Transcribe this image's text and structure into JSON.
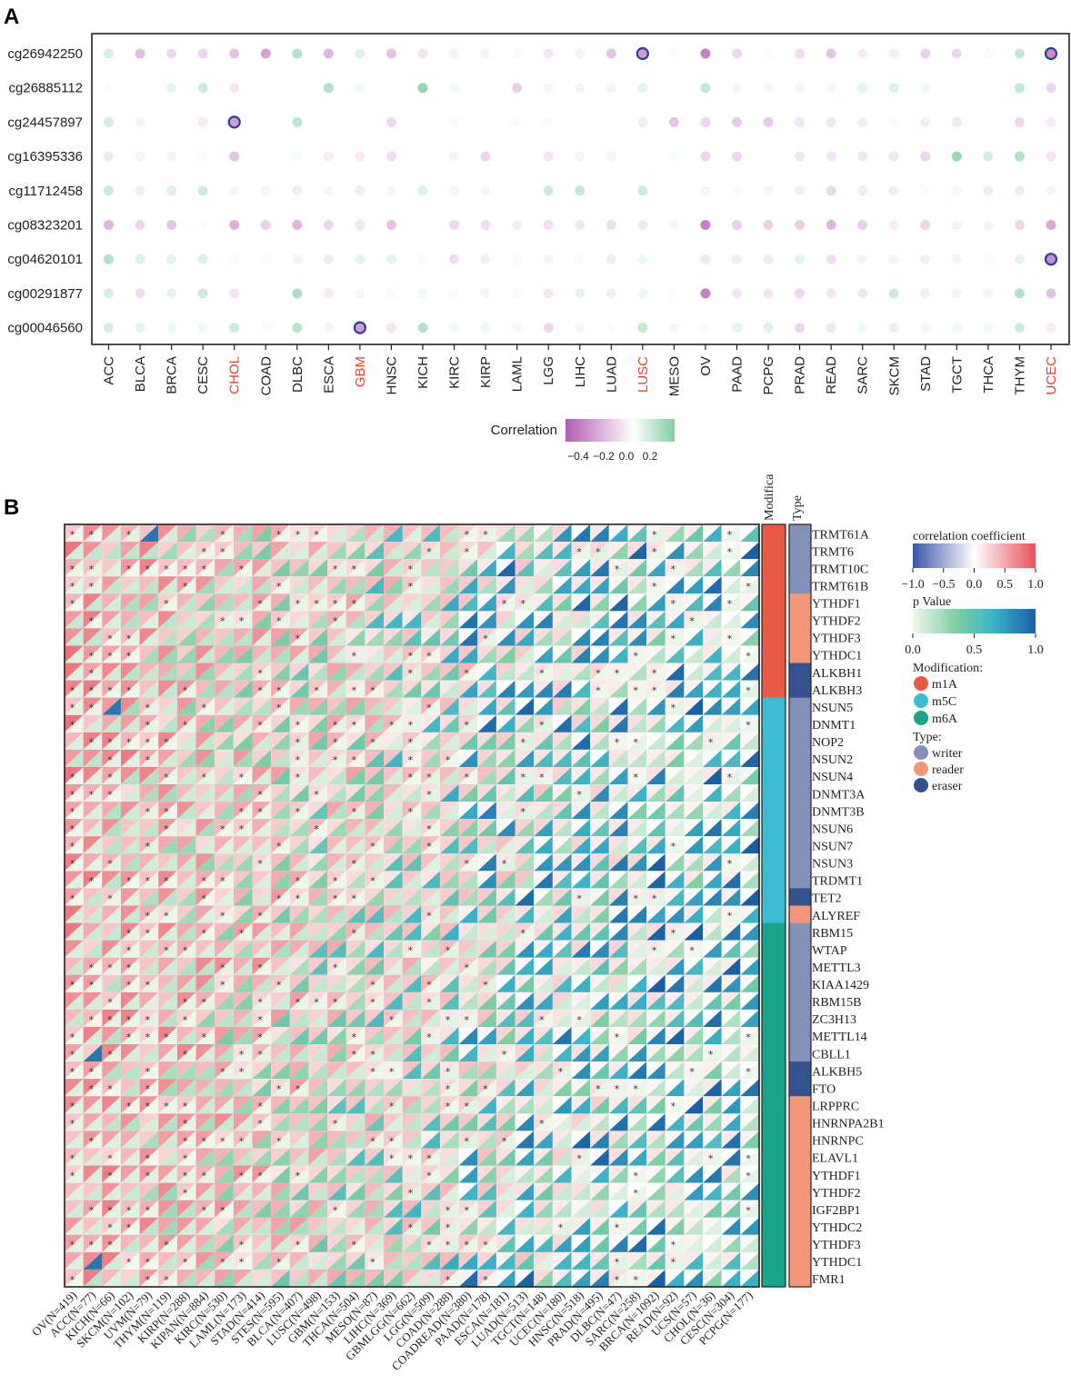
{
  "chart_data": [
    {
      "panel": "A",
      "type": "heatmap",
      "subtype": "dot-plot",
      "panel_label": "A",
      "rows": [
        "cg26942250",
        "cg26885112",
        "cg24457897",
        "cg16395336",
        "cg11712458",
        "cg08323201",
        "cg04620101",
        "cg00291877",
        "cg00046560"
      ],
      "columns": [
        "ACC",
        "BLCA",
        "BRCA",
        "CESC",
        "CHOL",
        "COAD",
        "DLBC",
        "ESCA",
        "GBM",
        "HNSC",
        "KICH",
        "KIRC",
        "KIRP",
        "LAML",
        "LGG",
        "LIHC",
        "LUAD",
        "LUSC",
        "MESO",
        "OV",
        "PAAD",
        "PCPG",
        "PRAD",
        "READ",
        "SARC",
        "SKCM",
        "STAD",
        "TGCT",
        "THCA",
        "THYM",
        "UCEC"
      ],
      "highlighted_columns": [
        "CHOL",
        "GBM",
        "LUSC",
        "UCEC"
      ],
      "highlight_color": "#e8402a",
      "values": [
        [
          0.1,
          -0.2,
          -0.12,
          -0.12,
          -0.18,
          -0.28,
          0.18,
          -0.22,
          0.08,
          -0.18,
          -0.08,
          -0.04,
          -0.04,
          -0.02,
          -0.08,
          -0.04,
          -0.18,
          -0.3,
          0.02,
          -0.38,
          -0.12,
          -0.02,
          -0.1,
          -0.18,
          -0.06,
          -0.06,
          -0.14,
          -0.12,
          -0.02,
          0.14,
          -0.35
        ],
        [
          0.02,
          0.0,
          0.06,
          0.12,
          -0.08,
          0.0,
          0.0,
          0.18,
          0.04,
          0.0,
          0.25,
          0.04,
          0.0,
          -0.14,
          0.04,
          -0.04,
          -0.04,
          0.06,
          0.0,
          0.14,
          -0.04,
          0.04,
          0.04,
          0.04,
          0.06,
          0.08,
          0.04,
          0.0,
          0.0,
          0.14,
          -0.12
        ],
        [
          0.1,
          -0.04,
          0.0,
          -0.06,
          -0.3,
          0.0,
          0.16,
          0.0,
          0.0,
          -0.12,
          0.0,
          0.02,
          0.0,
          0.02,
          0.02,
          0.0,
          0.0,
          -0.06,
          -0.18,
          -0.12,
          -0.16,
          -0.16,
          -0.08,
          -0.08,
          0.06,
          -0.02,
          -0.06,
          -0.08,
          0.0,
          -0.12,
          -0.06
        ],
        [
          -0.08,
          -0.04,
          -0.04,
          -0.02,
          -0.18,
          0.0,
          0.02,
          -0.06,
          -0.06,
          -0.1,
          0.0,
          -0.04,
          -0.12,
          0.0,
          -0.08,
          -0.04,
          -0.04,
          0.0,
          0.02,
          -0.12,
          -0.12,
          0.0,
          -0.08,
          -0.08,
          -0.08,
          -0.08,
          -0.12,
          0.24,
          0.1,
          0.18,
          -0.08
        ],
        [
          0.12,
          -0.06,
          0.08,
          0.12,
          -0.04,
          0.04,
          0.06,
          0.04,
          0.06,
          0.04,
          0.08,
          0.04,
          0.04,
          0.0,
          0.12,
          0.14,
          0.0,
          0.12,
          0.0,
          -0.04,
          -0.02,
          -0.04,
          -0.06,
          -0.12,
          -0.06,
          -0.06,
          0.02,
          0.04,
          0.06,
          0.06,
          0.04
        ],
        [
          -0.22,
          -0.12,
          -0.18,
          -0.02,
          -0.24,
          -0.14,
          -0.22,
          -0.12,
          -0.08,
          -0.18,
          0.0,
          -0.12,
          -0.1,
          -0.06,
          -0.1,
          -0.08,
          -0.1,
          -0.08,
          -0.04,
          -0.38,
          -0.14,
          -0.14,
          -0.14,
          -0.22,
          -0.14,
          -0.06,
          -0.12,
          -0.04,
          -0.04,
          -0.12,
          -0.26
        ],
        [
          0.18,
          0.08,
          0.06,
          0.08,
          0.02,
          0.02,
          0.04,
          0.06,
          0.06,
          0.06,
          -0.02,
          -0.1,
          -0.06,
          0.02,
          0.04,
          0.02,
          -0.06,
          0.04,
          0.0,
          -0.08,
          -0.06,
          0.06,
          0.06,
          -0.1,
          -0.04,
          0.04,
          -0.06,
          -0.04,
          -0.02,
          0.06,
          -0.35
        ],
        [
          0.1,
          -0.1,
          0.06,
          0.12,
          -0.08,
          0.0,
          0.2,
          -0.06,
          -0.04,
          -0.02,
          0.04,
          0.02,
          -0.04,
          -0.02,
          -0.08,
          0.06,
          -0.06,
          0.04,
          0.02,
          -0.38,
          -0.08,
          -0.08,
          -0.12,
          -0.08,
          -0.08,
          0.12,
          -0.06,
          -0.04,
          -0.04,
          0.18,
          -0.18
        ],
        [
          0.1,
          0.06,
          0.04,
          0.04,
          0.12,
          0.02,
          0.16,
          0.04,
          -0.3,
          -0.08,
          0.18,
          0.04,
          0.04,
          -0.04,
          -0.12,
          -0.04,
          -0.02,
          0.14,
          0.04,
          0.02,
          0.06,
          0.08,
          -0.12,
          -0.08,
          0.04,
          0.06,
          0.04,
          0.04,
          0.04,
          0.12,
          -0.06
        ]
      ],
      "outlined_points": [
        [
          "cg26942250",
          "LUSC"
        ],
        [
          "cg26942250",
          "UCEC"
        ],
        [
          "cg24457897",
          "CHOL"
        ],
        [
          "cg04620101",
          "UCEC"
        ],
        [
          "cg00046560",
          "GBM"
        ]
      ],
      "legend": {
        "title": "Correlation",
        "ticks": [
          "−0.4",
          "−0.2",
          "0.0",
          "0.2"
        ],
        "range": [
          -0.5,
          0.3
        ],
        "low_color": "#b45ab4",
        "mid_color": "#ffffff",
        "high_color": "#7fcfa4"
      }
    },
    {
      "panel": "B",
      "type": "heatmap",
      "subtype": "split-triangle (upper: correlation coefficient, lower: p value)",
      "panel_label": "B",
      "column_annotation_titles": [
        "Modification",
        "Type"
      ],
      "column_annotation_visible": [
        "Modifica",
        "Type"
      ],
      "genes": [
        "TRMT61A",
        "TRMT6",
        "TRMT10C",
        "TRMT61B",
        "YTHDF1",
        "YTHDF2",
        "YTHDF3",
        "YTHDC1",
        "ALKBH1",
        "ALKBH3",
        "NSUN5",
        "DNMT1",
        "NOP2",
        "NSUN2",
        "NSUN4",
        "DNMT3A",
        "DNMT3B",
        "NSUN6",
        "NSUN7",
        "NSUN3",
        "TRDMT1",
        "TET2",
        "ALYREF",
        "RBM15",
        "WTAP",
        "METTL3",
        "KIAA1429",
        "RBM15B",
        "ZC3H13",
        "METTL14",
        "CBLL1",
        "ALKBH5",
        "FTO",
        "LRPPRC",
        "HNRNPA2B1",
        "HNRNPC",
        "ELAVL1",
        "YTHDF1",
        "YTHDF2",
        "IGF2BP1",
        "YTHDC2",
        "YTHDF3",
        "YTHDC1",
        "FMR1"
      ],
      "modification": [
        "m1A",
        "m1A",
        "m1A",
        "m1A",
        "m1A",
        "m1A",
        "m1A",
        "m1A",
        "m1A",
        "m1A",
        "m5C",
        "m5C",
        "m5C",
        "m5C",
        "m5C",
        "m5C",
        "m5C",
        "m5C",
        "m5C",
        "m5C",
        "m5C",
        "m5C",
        "m5C",
        "m6A",
        "m6A",
        "m6A",
        "m6A",
        "m6A",
        "m6A",
        "m6A",
        "m6A",
        "m6A",
        "m6A",
        "m6A",
        "m6A",
        "m6A",
        "m6A",
        "m6A",
        "m6A",
        "m6A",
        "m6A",
        "m6A",
        "m6A",
        "m6A"
      ],
      "gene_type": [
        "writer",
        "writer",
        "writer",
        "writer",
        "reader",
        "reader",
        "reader",
        "reader",
        "eraser",
        "eraser",
        "writer",
        "writer",
        "writer",
        "writer",
        "writer",
        "writer",
        "writer",
        "writer",
        "writer",
        "writer",
        "writer",
        "eraser",
        "reader",
        "writer",
        "writer",
        "writer",
        "writer",
        "writer",
        "writer",
        "writer",
        "writer",
        "eraser",
        "eraser",
        "reader",
        "reader",
        "reader",
        "reader",
        "reader",
        "reader",
        "reader",
        "reader",
        "reader",
        "reader",
        "reader"
      ],
      "cancers": [
        "OV(N=419)",
        "ACC(N=77)",
        "KICH(N=66)",
        "SKCM(N=102)",
        "UVM(N=79)",
        "THYM(N=119)",
        "KIRP(N=288)",
        "KIPAN(N=884)",
        "KIRC(N=530)",
        "LAML(N=173)",
        "STAD(N=414)",
        "STES(N=595)",
        "BLCA(N=407)",
        "LUSC(N=498)",
        "GBM(N=153)",
        "THCA(N=504)",
        "MESO(N=87)",
        "LIHC(N=369)",
        "GBMLGG(N=662)",
        "LGG(N=509)",
        "COAD(N=288)",
        "COADREAD(N=380)",
        "PAAD(N=178)",
        "ESCA(N=181)",
        "LUAD(N=513)",
        "TGCT(N=148)",
        "UCEC(N=180)",
        "HNSC(N=518)",
        "PRAD(N=495)",
        "DLBC(N=47)",
        "SARC(N=258)",
        "BRCA(N=1092)",
        "READ(N=92)",
        "UCS(N=57)",
        "CHOL(N=36)",
        "CESC(N=304)",
        "PCPG(N=177)"
      ],
      "cell_mark": "*",
      "legend": {
        "corr_title": "correlation coefficient",
        "corr_ticks": [
          "−1.0",
          "−0.5",
          "0.0",
          "0.5",
          "1.0"
        ],
        "corr_colors": [
          "#3b56a8",
          "#ffffff",
          "#e8505a"
        ],
        "p_title": "p Value",
        "p_ticks": [
          "0.0",
          "0.5",
          "1.0"
        ],
        "p_colors": [
          "#f0f8ec",
          "#7fcfa4",
          "#3cb4c8",
          "#1a5fa6"
        ],
        "modification_title": "Modification:",
        "modification_items": [
          {
            "label": "m1A",
            "color": "#e85a45"
          },
          {
            "label": "m5C",
            "color": "#3cbdd4"
          },
          {
            "label": "m6A",
            "color": "#1aa58a"
          }
        ],
        "type_title": "Type:",
        "type_items": [
          {
            "label": "writer",
            "color": "#8191ba"
          },
          {
            "label": "reader",
            "color": "#f39778"
          },
          {
            "label": "eraser",
            "color": "#34528f"
          }
        ]
      }
    }
  ]
}
